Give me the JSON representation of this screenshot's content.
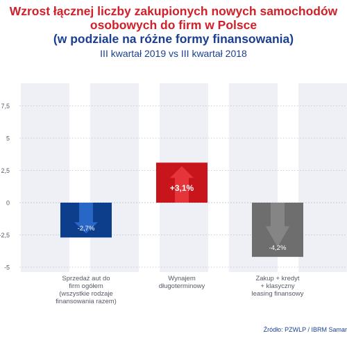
{
  "title_lines": [
    "Wzrost łącznej liczby zakupionych nowych samochodów",
    "osobowych do firm w Polsce",
    "(w podziale na różne formy finansowania)"
  ],
  "subtitle": "III kwartał 2019 vs III kwartał 2018",
  "source": "Źródło: PZWLP / IBRM Samar",
  "chart_data": {
    "type": "bar",
    "title": "Wzrost łącznej liczby zakupionych nowych samochodów osobowych do firm w Polsce (w podziale na różne formy finansowania)",
    "subtitle": "III kwartał 2019 vs III kwartał 2018",
    "categories": [
      [
        "Sprzedaż aut do",
        "firm ogółem",
        "(wszystkie rodzaje",
        "finansowania razem)"
      ],
      [
        "Wynajem",
        "długoterminowy"
      ],
      [
        "Zakup + kredyt",
        "+ klasyczny",
        "leasing finansowy"
      ]
    ],
    "values": [
      -2.7,
      3.1,
      -4.2
    ],
    "data_labels": [
      "-2,7%",
      "+3,1%",
      "-4,2%"
    ],
    "bar_colors": [
      "#0d3e8c",
      "#c8151b",
      "#6e6e6e"
    ],
    "arrow_colors": [
      "#2f6fd0",
      "#ea3a40",
      "#8a8a8a"
    ],
    "yticks": [
      7.5,
      5,
      2.5,
      0,
      -2.5,
      -5
    ],
    "ytick_labels": [
      "7,5",
      "5",
      "2,5",
      "0",
      "-2,5",
      "-5"
    ],
    "ylim": [
      -5,
      9.5
    ],
    "grid": "horizontal dotted, alternating vertical stripes",
    "xlabel": "",
    "ylabel": ""
  }
}
